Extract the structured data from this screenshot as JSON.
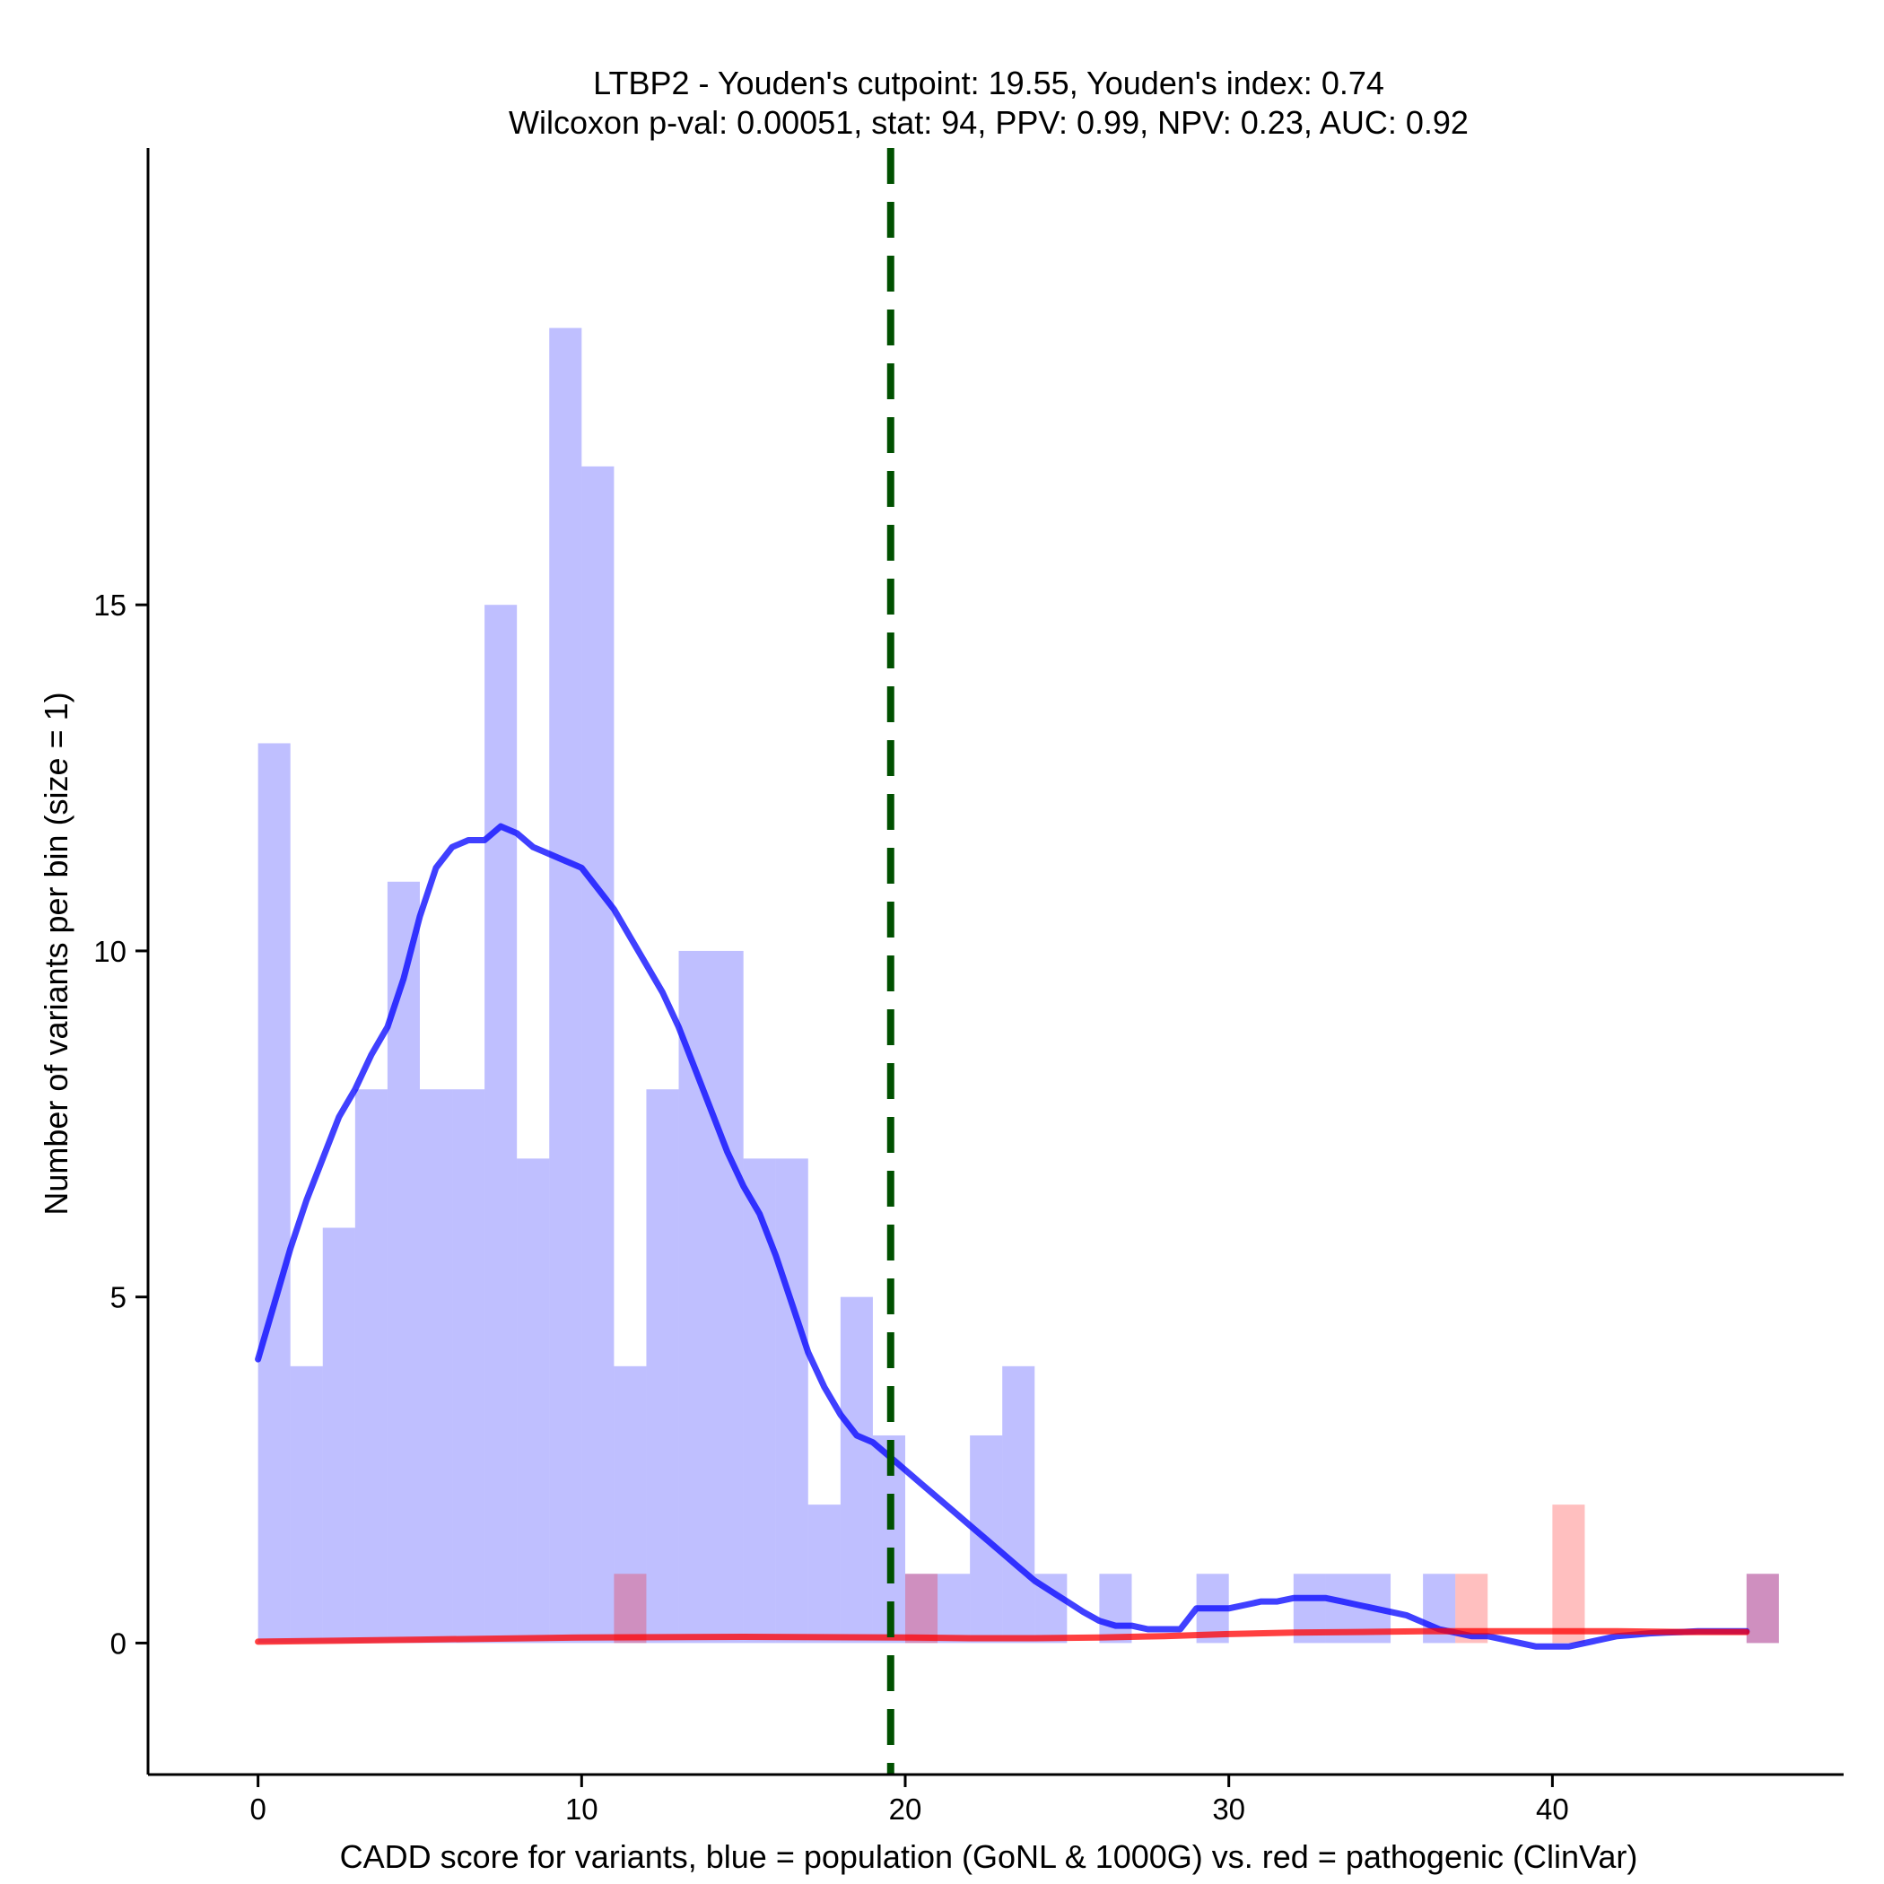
{
  "chart_data": {
    "type": "histogram",
    "title_line1": "LTBP2 - Youden's cutpoint: 19.55, Youden's index: 0.74",
    "title_line2": "Wilcoxon p-val: 0.00051, stat: 94, PPV: 0.99, NPV: 0.23, AUC: 0.92",
    "xlabel": "CADD score for variants, blue = population (GoNL & 1000G) vs. red = pathogenic (ClinVar)",
    "ylabel": "Number of variants per bin (size = 1)",
    "xlim": [
      -3.4,
      49
    ],
    "ylim": [
      -1.9,
      21.6
    ],
    "x_ticks": [
      0,
      10,
      20,
      30,
      40
    ],
    "x_tick_labels": [
      "0",
      "10",
      "20",
      "30",
      "40"
    ],
    "y_ticks": [
      0,
      5,
      10,
      15
    ],
    "y_tick_labels": [
      "0",
      "5",
      "10",
      "15"
    ],
    "bin_width": 1,
    "cutpoint": 19.55,
    "series": [
      {
        "name": "population (GoNL & 1000G)",
        "color": "#0000ff",
        "bar_opacity": 0.25,
        "bin_starts": [
          0,
          1,
          2,
          3,
          4,
          5,
          6,
          7,
          8,
          9,
          10,
          11,
          12,
          13,
          14,
          15,
          16,
          17,
          18,
          19,
          20,
          21,
          22,
          23,
          24,
          25,
          26,
          27,
          28,
          29,
          30,
          31,
          32,
          33,
          34,
          35,
          36,
          37,
          38,
          39,
          40,
          41,
          42,
          43,
          44,
          45,
          46
        ],
        "counts": [
          13,
          4,
          6,
          8,
          11,
          8,
          8,
          15,
          7,
          19,
          17,
          4,
          8,
          10,
          10,
          7,
          7,
          2,
          5,
          3,
          1,
          1,
          3,
          4,
          1,
          0,
          1,
          0,
          0,
          1,
          0,
          0,
          1,
          1,
          1,
          0,
          1,
          0,
          0,
          0,
          0,
          0,
          0,
          0,
          0,
          0,
          1
        ],
        "density_x": [
          0,
          0.5,
          1,
          1.5,
          2,
          2.5,
          3,
          3.5,
          4,
          4.5,
          5,
          5.5,
          6,
          6.5,
          7,
          7.5,
          8,
          8.5,
          9,
          9.5,
          10,
          10.5,
          11,
          11.5,
          12,
          12.5,
          13,
          13.5,
          14,
          14.5,
          15,
          15.5,
          16,
          16.5,
          17,
          17.5,
          18,
          18.5,
          19,
          19.5,
          20,
          20.5,
          21,
          21.5,
          22,
          22.5,
          23,
          23.5,
          24,
          24.5,
          25,
          25.5,
          26,
          26.5,
          27,
          27.5,
          28,
          28.5,
          29,
          29.5,
          30,
          30.5,
          31,
          31.5,
          32,
          32.5,
          33,
          33.5,
          34,
          34.5,
          35,
          35.5,
          36,
          36.5,
          37,
          37.5,
          38,
          38.5,
          39,
          39.5,
          40,
          40.5,
          41,
          41.5,
          42,
          42.5,
          43,
          43.5,
          44,
          44.5,
          45,
          45.5,
          46
        ],
        "density_y": [
          4.1,
          4.9,
          5.7,
          6.4,
          7.0,
          7.6,
          8.0,
          8.5,
          8.9,
          9.6,
          10.5,
          11.2,
          11.5,
          11.6,
          11.6,
          11.8,
          11.7,
          11.5,
          11.4,
          11.3,
          11.2,
          10.9,
          10.6,
          10.2,
          9.8,
          9.4,
          8.9,
          8.3,
          7.7,
          7.1,
          6.6,
          6.2,
          5.6,
          4.9,
          4.2,
          3.7,
          3.3,
          3.0,
          2.9,
          2.7,
          2.5,
          2.3,
          2.1,
          1.9,
          1.7,
          1.5,
          1.3,
          1.1,
          0.9,
          0.75,
          0.6,
          0.45,
          0.32,
          0.25,
          0.25,
          0.2,
          0.2,
          0.2,
          0.5,
          0.5,
          0.5,
          0.55,
          0.6,
          0.6,
          0.65,
          0.65,
          0.65,
          0.6,
          0.55,
          0.5,
          0.45,
          0.4,
          0.3,
          0.2,
          0.15,
          0.1,
          0.1,
          0.05,
          0.0,
          -0.05,
          -0.05,
          -0.05,
          0.0,
          0.05,
          0.1,
          0.12,
          0.14,
          0.15,
          0.16,
          0.17,
          0.17,
          0.17,
          0.17
        ]
      },
      {
        "name": "pathogenic (ClinVar)",
        "color": "#ff0000",
        "bar_opacity": 0.25,
        "bin_starts": [
          11,
          20,
          37,
          40,
          46
        ],
        "counts": [
          1,
          1,
          1,
          2,
          1
        ],
        "density_x": [
          0,
          5,
          10,
          15,
          20,
          22,
          24,
          26,
          28,
          30,
          32,
          34,
          36,
          38,
          40,
          42,
          44,
          46
        ],
        "density_y": [
          0.02,
          0.05,
          0.08,
          0.09,
          0.08,
          0.07,
          0.07,
          0.08,
          0.1,
          0.13,
          0.15,
          0.16,
          0.17,
          0.17,
          0.17,
          0.17,
          0.16,
          0.16
        ]
      }
    ]
  }
}
